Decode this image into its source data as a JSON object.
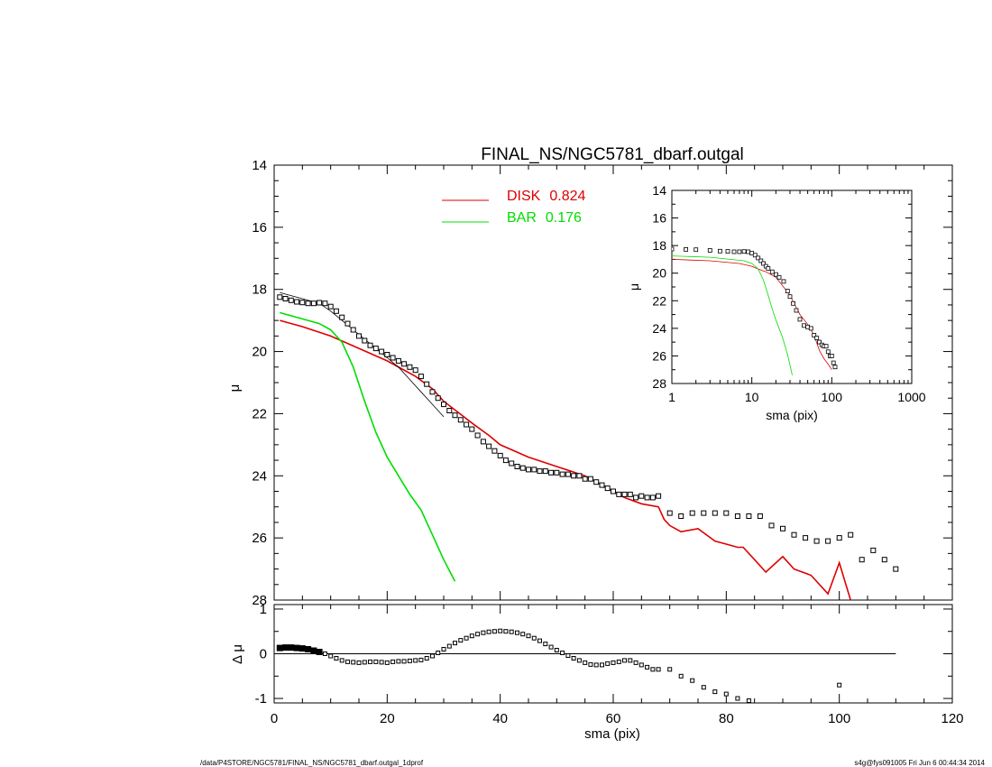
{
  "chart_data": [
    {
      "type": "line",
      "title": "FINAL_NS/NGC5781_dbarf.outgal",
      "xlabel": "",
      "ylabel": "μ",
      "xlim": [
        0,
        120
      ],
      "ylim": [
        28,
        14
      ],
      "y_inverted": true,
      "x_ticks": [
        0,
        20,
        40,
        60,
        80,
        100,
        120
      ],
      "y_ticks": [
        14,
        16,
        18,
        20,
        22,
        24,
        26,
        28
      ],
      "legend_placement": "top-center",
      "series": [
        {
          "name": "DISK",
          "legend_value": "0.824",
          "color": "#dd0000",
          "x": [
            1,
            5,
            10,
            15,
            20,
            25,
            28,
            30,
            35,
            38,
            40,
            45,
            50,
            55,
            58,
            60,
            62,
            65,
            68,
            69,
            70,
            72,
            75,
            78,
            80,
            82,
            83,
            85,
            87,
            90,
            92,
            95,
            98,
            100,
            102
          ],
          "y": [
            19.0,
            19.2,
            19.5,
            19.9,
            20.3,
            20.8,
            21.2,
            21.6,
            22.3,
            22.7,
            23.0,
            23.4,
            23.7,
            24.0,
            24.3,
            24.5,
            24.7,
            24.9,
            25.0,
            25.4,
            25.6,
            25.8,
            25.7,
            26.1,
            26.2,
            26.3,
            26.3,
            26.7,
            27.1,
            26.6,
            27.0,
            27.2,
            27.8,
            26.8,
            28.0
          ]
        },
        {
          "name": "BAR",
          "legend_value": "0.176",
          "color": "#00dd00",
          "x": [
            1,
            5,
            8,
            10,
            12,
            14,
            16,
            18,
            20,
            22,
            24,
            26,
            28,
            30,
            32
          ],
          "y": [
            18.75,
            18.95,
            19.1,
            19.3,
            19.7,
            20.5,
            21.6,
            22.6,
            23.4,
            24.0,
            24.6,
            25.1,
            25.9,
            26.7,
            27.4
          ]
        },
        {
          "name": "",
          "color": "#000000",
          "x": [
            1,
            5,
            8,
            10,
            12,
            14,
            16,
            18,
            20,
            22,
            24,
            26,
            28,
            30
          ],
          "y": [
            18.1,
            18.3,
            18.45,
            18.7,
            19.0,
            19.3,
            19.6,
            19.9,
            20.2,
            20.5,
            20.9,
            21.3,
            21.7,
            22.1
          ]
        },
        {
          "name": "",
          "type": "scatter",
          "color": "#000000",
          "x": [
            1,
            2,
            3,
            4,
            5,
            6,
            7,
            8,
            9,
            10,
            11,
            12,
            13,
            14,
            15,
            16,
            17,
            18,
            19,
            20,
            21,
            22,
            23,
            24,
            25,
            26,
            27,
            28,
            29,
            30,
            31,
            32,
            33,
            34,
            35,
            36,
            37,
            38,
            39,
            40,
            41,
            42,
            43,
            44,
            45,
            46,
            47,
            48,
            49,
            50,
            51,
            52,
            53,
            54,
            55,
            56,
            57,
            58,
            59,
            60,
            61,
            62,
            63,
            64,
            65,
            66,
            67,
            68,
            70,
            72,
            74,
            76,
            78,
            80,
            82,
            84,
            86,
            88,
            90,
            92,
            94,
            96,
            98,
            100,
            102,
            104,
            106,
            108,
            110
          ],
          "y": [
            18.25,
            18.3,
            18.35,
            18.4,
            18.42,
            18.45,
            18.45,
            18.43,
            18.45,
            18.55,
            18.7,
            18.9,
            19.1,
            19.3,
            19.5,
            19.65,
            19.8,
            19.9,
            20.0,
            20.1,
            20.2,
            20.3,
            20.4,
            20.5,
            20.6,
            20.8,
            21.05,
            21.3,
            21.5,
            21.7,
            21.9,
            22.05,
            22.2,
            22.35,
            22.5,
            22.7,
            22.9,
            23.05,
            23.2,
            23.35,
            23.5,
            23.6,
            23.7,
            23.75,
            23.8,
            23.8,
            23.85,
            23.85,
            23.9,
            23.9,
            23.95,
            23.95,
            24.0,
            24.0,
            24.1,
            24.1,
            24.2,
            24.3,
            24.4,
            24.5,
            24.6,
            24.6,
            24.6,
            24.7,
            24.65,
            24.7,
            24.7,
            24.65,
            25.2,
            25.3,
            25.2,
            25.2,
            25.2,
            25.2,
            25.3,
            25.3,
            25.3,
            25.6,
            25.7,
            25.9,
            26.0,
            26.1,
            26.1,
            26.0,
            25.9,
            26.7,
            26.4,
            26.7,
            27.0
          ]
        }
      ]
    },
    {
      "type": "scatter",
      "title": "",
      "xlabel": "sma (pix)",
      "ylabel": "Δ μ",
      "xlim": [
        0,
        120
      ],
      "ylim": [
        -1.1,
        1.1
      ],
      "x_ticks": [
        0,
        20,
        40,
        60,
        80,
        100,
        120
      ],
      "y_ticks": [
        -1,
        0,
        1
      ],
      "zero_line_xlim": [
        0,
        110
      ],
      "series": [
        {
          "name": "",
          "color": "#000000",
          "x": [
            1,
            2,
            3,
            4,
            5,
            6,
            7,
            8,
            9,
            10,
            11,
            12,
            13,
            14,
            15,
            16,
            17,
            18,
            19,
            20,
            21,
            22,
            23,
            24,
            25,
            26,
            27,
            28,
            29,
            30,
            31,
            32,
            33,
            34,
            35,
            36,
            37,
            38,
            39,
            40,
            41,
            42,
            43,
            44,
            45,
            46,
            47,
            48,
            49,
            50,
            51,
            52,
            53,
            54,
            55,
            56,
            57,
            58,
            59,
            60,
            61,
            62,
            63,
            64,
            65,
            66,
            67,
            68,
            70,
            72,
            74,
            76,
            78,
            80,
            82,
            84,
            100
          ],
          "y": [
            0.13,
            0.14,
            0.14,
            0.13,
            0.12,
            0.1,
            0.07,
            0.04,
            0.0,
            -0.05,
            -0.1,
            -0.15,
            -0.18,
            -0.19,
            -0.2,
            -0.19,
            -0.18,
            -0.18,
            -0.19,
            -0.2,
            -0.18,
            -0.17,
            -0.17,
            -0.16,
            -0.15,
            -0.14,
            -0.1,
            -0.05,
            0.02,
            0.1,
            0.17,
            0.24,
            0.3,
            0.35,
            0.4,
            0.44,
            0.47,
            0.49,
            0.5,
            0.51,
            0.5,
            0.49,
            0.47,
            0.44,
            0.4,
            0.35,
            0.29,
            0.22,
            0.15,
            0.08,
            0.02,
            -0.04,
            -0.1,
            -0.15,
            -0.2,
            -0.24,
            -0.25,
            -0.25,
            -0.22,
            -0.2,
            -0.18,
            -0.15,
            -0.15,
            -0.2,
            -0.25,
            -0.3,
            -0.35,
            -0.35,
            -0.35,
            -0.5,
            -0.6,
            -0.75,
            -0.85,
            -0.9,
            -1.0,
            -1.05,
            -0.7
          ]
        }
      ]
    },
    {
      "type": "line",
      "title": "",
      "xlabel": "sma (pix)",
      "ylabel": "μ",
      "x_scale": "log",
      "xlim": [
        1,
        1000
      ],
      "ylim": [
        28,
        14
      ],
      "y_inverted": true,
      "x_ticks": [
        1,
        10,
        100,
        1000
      ],
      "y_ticks": [
        14,
        16,
        18,
        20,
        22,
        24,
        26,
        28
      ],
      "placement": "top-right inset",
      "series": [
        {
          "name": "",
          "color": "#dd0000",
          "x": [
            1,
            3,
            7,
            10,
            12,
            15,
            20,
            30,
            40,
            50,
            60,
            70,
            80,
            90,
            100
          ],
          "y": [
            19.0,
            19.1,
            19.3,
            19.5,
            19.7,
            19.9,
            20.3,
            21.6,
            23.0,
            23.7,
            24.5,
            25.6,
            26.2,
            26.6,
            27.0
          ]
        },
        {
          "name": "",
          "color": "#00dd00",
          "x": [
            1,
            3,
            8,
            10,
            12,
            14,
            16,
            18,
            20,
            24,
            28,
            32
          ],
          "y": [
            18.75,
            18.85,
            19.1,
            19.3,
            19.7,
            20.5,
            21.6,
            22.6,
            23.4,
            24.6,
            25.9,
            27.4
          ]
        },
        {
          "name": "",
          "type": "scatter",
          "color": "#000000",
          "x": [
            1,
            1.5,
            2,
            3,
            4,
            5,
            6,
            7,
            8,
            9,
            10,
            11,
            12,
            13,
            14,
            15,
            16,
            18,
            20,
            22,
            25,
            28,
            30,
            33,
            36,
            40,
            45,
            50,
            55,
            60,
            65,
            70,
            75,
            80,
            85,
            90,
            95,
            100,
            105,
            110
          ],
          "y": [
            18.25,
            18.28,
            18.3,
            18.35,
            18.4,
            18.42,
            18.45,
            18.45,
            18.43,
            18.45,
            18.55,
            18.7,
            18.9,
            19.1,
            19.3,
            19.5,
            19.65,
            19.9,
            20.1,
            20.3,
            20.6,
            21.3,
            21.7,
            22.2,
            22.7,
            23.35,
            23.8,
            23.9,
            24.0,
            24.5,
            24.7,
            25.0,
            25.2,
            25.3,
            25.3,
            25.7,
            26.0,
            26.0,
            26.5,
            26.8
          ]
        }
      ]
    }
  ],
  "footer": {
    "left": "/data/P4STORE/NGC5781/FINAL_NS/NGC5781_dbarf.outgal_1dprof",
    "right": "s4g@fys091005  Fri Jun  6 00:44:34 2014"
  }
}
